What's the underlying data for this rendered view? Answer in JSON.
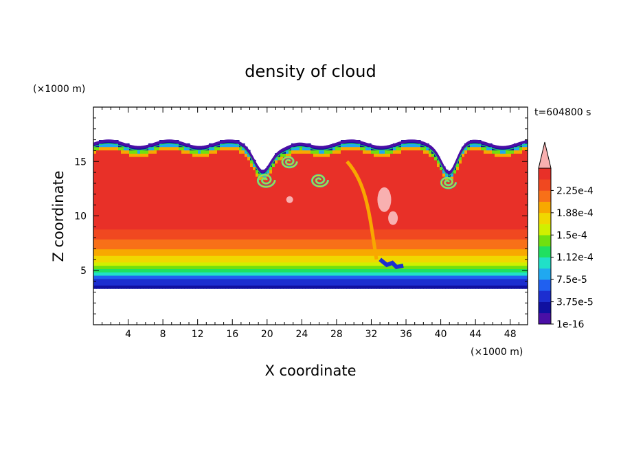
{
  "chart_data": {
    "type": "heatmap",
    "title": "density of cloud",
    "time_label": "t=604800 s",
    "xlabel": "X coordinate",
    "ylabel": "Z coordinate",
    "x_unit": "(×1000 m)",
    "z_unit": "(×1000 m)",
    "xlim": [
      0,
      50
    ],
    "ylim": [
      0,
      20
    ],
    "x_ticks": [
      4,
      8,
      12,
      16,
      20,
      24,
      28,
      32,
      36,
      40,
      44,
      48
    ],
    "y_ticks": [
      5,
      10,
      15
    ],
    "colorbar": {
      "labels": [
        "2.25e-4",
        "1.88e-4",
        "1.5e-4",
        "1.12e-4",
        "7.5e-5",
        "3.75e-5",
        "1e-16"
      ],
      "levels": [
        1e-16,
        1.88e-05,
        3.75e-05,
        5.63e-05,
        7.5e-05,
        9.38e-05,
        0.000112,
        0.000131,
        0.00015,
        0.000169,
        0.000188,
        0.000206,
        0.000225,
        0.000244
      ],
      "colors": [
        "#4a0fa6",
        "#1010a0",
        "#1c2ed0",
        "#2060f0",
        "#20a8f0",
        "#20e0c8",
        "#20e060",
        "#70e010",
        "#d0f000",
        "#f0d800",
        "#f8a800",
        "#f87018",
        "#f04820",
        "#e83028"
      ],
      "over_color": "#f8b0b0"
    },
    "cloud_layer": {
      "base_z": 3.4,
      "top_z": 16.5,
      "core_value": 0.00023,
      "edge_value": 1e-16
    }
  }
}
